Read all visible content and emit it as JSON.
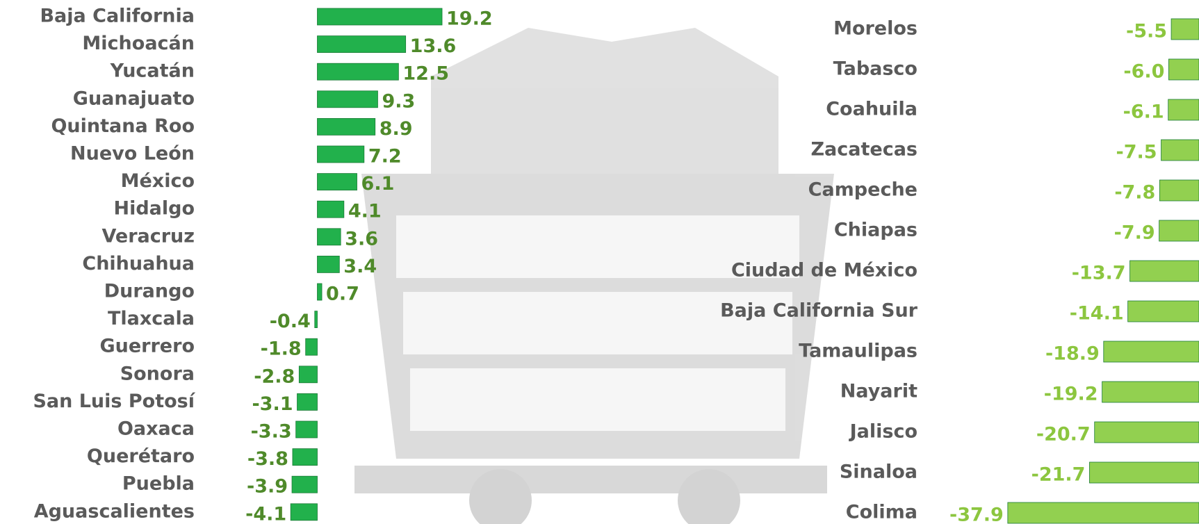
{
  "chart_data": [
    {
      "type": "bar",
      "orientation": "horizontal",
      "categories": [
        "Baja California",
        "Michoacán",
        "Yucatán",
        "Guanajuato",
        "Quintana Roo",
        "Nuevo León",
        "México",
        "Hidalgo",
        "Veracruz",
        "Chihuahua",
        "Durango",
        "Tlaxcala",
        "Guerrero",
        "Sonora",
        "San Luis Potosí",
        "Oaxaca",
        "Querétaro",
        "Puebla",
        "Aguascalientes"
      ],
      "values": [
        19.2,
        13.6,
        12.5,
        9.3,
        8.9,
        7.2,
        6.1,
        4.1,
        3.6,
        3.4,
        0.7,
        -0.4,
        -1.8,
        -2.8,
        -3.1,
        -3.3,
        -3.8,
        -3.9,
        -4.1
      ],
      "color": "#22b14c",
      "label_color": "#4f8a2a",
      "xlim": [
        -5,
        20
      ]
    },
    {
      "type": "bar",
      "orientation": "horizontal",
      "categories": [
        "Morelos",
        "Tabasco",
        "Coahuila",
        "Zacatecas",
        "Campeche",
        "Chiapas",
        "Ciudad de México",
        "Baja California Sur",
        "Tamaulipas",
        "Nayarit",
        "Jalisco",
        "Sinaloa",
        "Colima"
      ],
      "values": [
        -5.5,
        -6.0,
        -6.1,
        -7.5,
        -7.8,
        -7.9,
        -13.7,
        -14.1,
        -18.9,
        -19.2,
        -20.7,
        -21.7,
        -37.9
      ],
      "value_labels": [
        "-5.5",
        "-6.0",
        "-6.1",
        "-7.5",
        "-7.8",
        "-7.9",
        "-13.7",
        "-14.1",
        "-18.9",
        "-19.2",
        "-20.7",
        "-21.7",
        "-37.9"
      ],
      "color": "#92d050",
      "label_color": "#8cc63f",
      "xlim": [
        -40,
        0
      ]
    }
  ]
}
